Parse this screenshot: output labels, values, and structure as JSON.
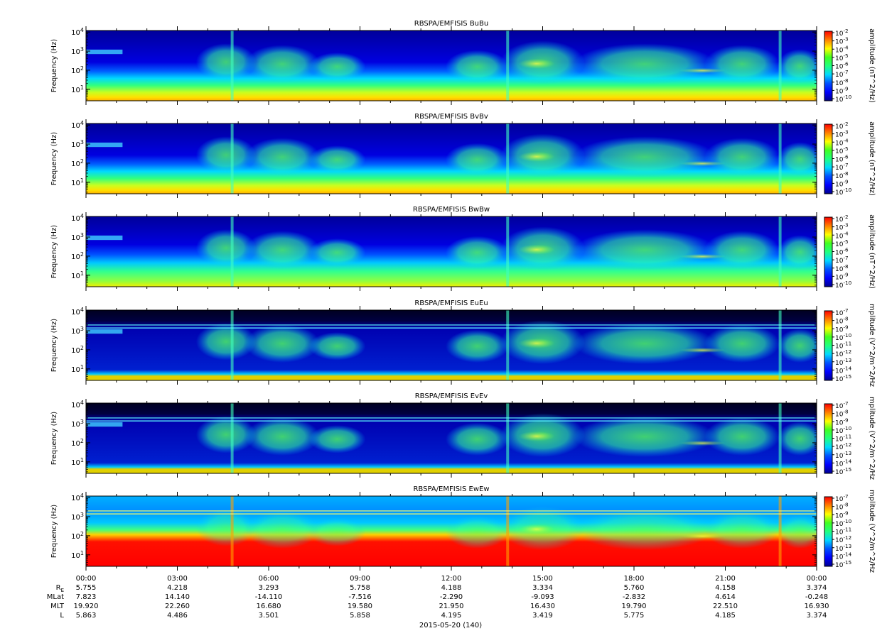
{
  "chart_data": {
    "type": "heatmap",
    "date_label": "2015-05-20 (140)",
    "x_time_ticks": [
      "00:00",
      "03:00",
      "06:00",
      "09:00",
      "12:00",
      "15:00",
      "18:00",
      "21:00",
      "00:00"
    ],
    "y_scale": "log",
    "y_ticks": [
      "10^1",
      "10^2",
      "10^3",
      "10^4"
    ],
    "ylabel": "Frequency (Hz)",
    "panels": [
      {
        "title": "RBSPA/EMFISIS  BuBu",
        "zlabel": "amplitude (nT^2/Hz)",
        "zmin_exp": -10,
        "zmax_exp": -2,
        "z_ticks": [
          "10^-2",
          "10^-3",
          "10^-4",
          "10^-5",
          "10^-6",
          "10^-7",
          "10^-8",
          "10^-9",
          "10^-10"
        ],
        "bg": "mag"
      },
      {
        "title": "RBSPA/EMFISIS  BvBv",
        "zlabel": "amplitude (nT^2/Hz)",
        "zmin_exp": -10,
        "zmax_exp": -2,
        "z_ticks": [
          "10^-2",
          "10^-3",
          "10^-4",
          "10^-5",
          "10^-6",
          "10^-7",
          "10^-8",
          "10^-9",
          "10^-10"
        ],
        "bg": "mag"
      },
      {
        "title": "RBSPA/EMFISIS  BwBw",
        "zlabel": "amplitude (nT^2/Hz)",
        "zmin_exp": -10,
        "zmax_exp": -2,
        "z_ticks": [
          "10^-2",
          "10^-3",
          "10^-4",
          "10^-5",
          "10^-6",
          "10^-7",
          "10^-8",
          "10^-9",
          "10^-10"
        ],
        "bg": "magw"
      },
      {
        "title": "RBSPA/EMFISIS  EuEu",
        "zlabel": "mplitude (V^2/m^2/Hz",
        "zmin_exp": -15,
        "zmax_exp": -7,
        "z_ticks": [
          "10^-7",
          "10^-8",
          "10^-9",
          "10^-10",
          "10^-11",
          "10^-12",
          "10^-13",
          "10^-14",
          "10^-15"
        ],
        "bg": "elec"
      },
      {
        "title": "RBSPA/EMFISIS  EvEv",
        "zlabel": "mplitude (V^2/m^2/Hz",
        "zmin_exp": -15,
        "zmax_exp": -7,
        "z_ticks": [
          "10^-7",
          "10^-8",
          "10^-9",
          "10^-10",
          "10^-11",
          "10^-12",
          "10^-13",
          "10^-14",
          "10^-15"
        ],
        "bg": "elec"
      },
      {
        "title": "RBSPA/EMFISIS  EwEw",
        "zlabel": "mplitude (V^2/m^2/Hz",
        "zmin_exp": -15,
        "zmax_exp": -7,
        "z_ticks": [
          "10^-7",
          "10^-8",
          "10^-9",
          "10^-10",
          "10^-11",
          "10^-12",
          "10^-13",
          "10^-14",
          "10^-15"
        ],
        "bg": "elecw"
      }
    ],
    "ephemeris": {
      "labels": [
        "R_E",
        "MLat",
        "MLT",
        "L"
      ],
      "rows": [
        [
          "5.755",
          "4.218",
          "3.293",
          "5.758",
          "4.188",
          "3.334",
          "5.760",
          "4.158",
          "3.374"
        ],
        [
          "7.823",
          "14.140",
          "-14.110",
          "-7.516",
          "-2.290",
          "-9.093",
          "-2.832",
          "4.614",
          "-0.248"
        ],
        [
          "19.920",
          "22.260",
          "16.680",
          "19.580",
          "21.950",
          "16.430",
          "19.790",
          "22.510",
          "16.930"
        ],
        [
          "5.863",
          "4.486",
          "3.501",
          "5.858",
          "4.195",
          "3.419",
          "5.775",
          "4.185",
          "3.374"
        ]
      ]
    }
  }
}
